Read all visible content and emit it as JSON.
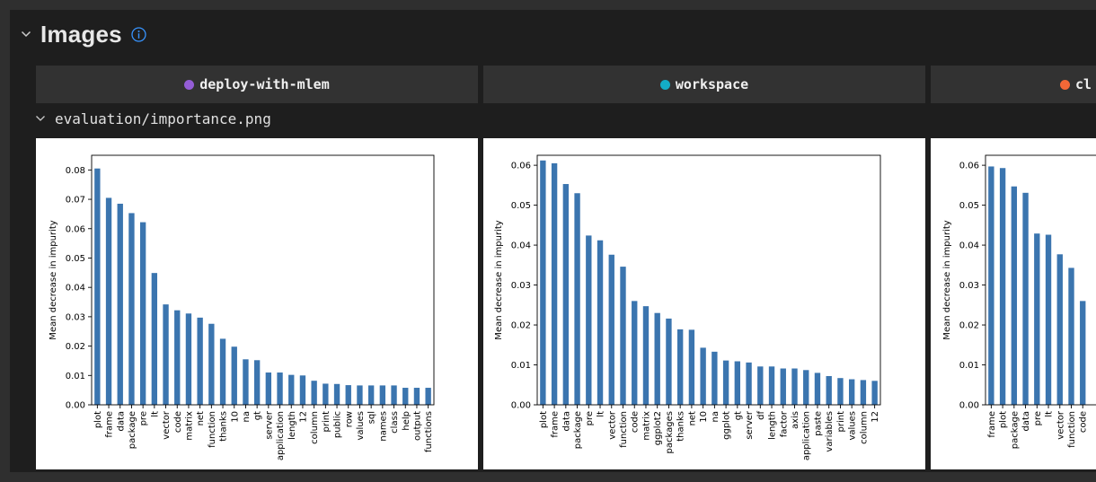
{
  "section": {
    "title": "Images",
    "chevron_icon": "chevron-down-icon",
    "info_icon": "info-icon"
  },
  "columns": [
    {
      "name": "deploy-with-mlem",
      "color": "#945dd6"
    },
    {
      "name": "workspace",
      "color": "#13adc7"
    },
    {
      "name": "cl",
      "color": "#f46837"
    }
  ],
  "plot_path": "evaluation/importance.png",
  "chart_data": [
    {
      "type": "bar",
      "ylabel": "Mean decrease in impurity",
      "xlabel": "",
      "ylim": [
        0,
        0.085
      ],
      "yticks": [
        0.0,
        0.01,
        0.02,
        0.03,
        0.04,
        0.05,
        0.06,
        0.07,
        0.08
      ],
      "ytick_labels": [
        "0.00",
        "0.01",
        "0.02",
        "0.03",
        "0.04",
        "0.05",
        "0.06",
        "0.07",
        "0.08"
      ],
      "bar_color": "#3b75af",
      "categories": [
        "plot",
        "frame",
        "data",
        "package",
        "pre",
        "lt",
        "vector",
        "code",
        "matrix",
        "net",
        "function",
        "thanks",
        "10",
        "na",
        "gt",
        "server",
        "application",
        "length",
        "12",
        "column",
        "print",
        "public",
        "row",
        "values",
        "sql",
        "names",
        "class",
        "help",
        "output",
        "functions"
      ],
      "values": [
        0.0805,
        0.0705,
        0.0685,
        0.0653,
        0.0622,
        0.0449,
        0.0342,
        0.0322,
        0.0311,
        0.0297,
        0.0276,
        0.0225,
        0.0198,
        0.0155,
        0.0152,
        0.011,
        0.011,
        0.0102,
        0.01,
        0.0082,
        0.0072,
        0.0071,
        0.0067,
        0.0066,
        0.0066,
        0.0066,
        0.0066,
        0.0058,
        0.0058,
        0.0058
      ]
    },
    {
      "type": "bar",
      "ylabel": "Mean decrease in impurity",
      "xlabel": "",
      "ylim": [
        0,
        0.0625
      ],
      "yticks": [
        0.0,
        0.01,
        0.02,
        0.03,
        0.04,
        0.05,
        0.06
      ],
      "ytick_labels": [
        "0.00",
        "0.01",
        "0.02",
        "0.03",
        "0.04",
        "0.05",
        "0.06"
      ],
      "bar_color": "#3b75af",
      "categories": [
        "plot",
        "frame",
        "data",
        "package",
        "pre",
        "lt",
        "vector",
        "function",
        "code",
        "matrix",
        "ggplot2",
        "packages",
        "thanks",
        "net",
        "10",
        "na",
        "ggplot",
        "gt",
        "server",
        "df",
        "length",
        "factor",
        "axis",
        "application",
        "paste",
        "variables",
        "print",
        "values",
        "column",
        "12"
      ],
      "values": [
        0.0612,
        0.0605,
        0.0553,
        0.053,
        0.0424,
        0.0412,
        0.0376,
        0.0346,
        0.026,
        0.0247,
        0.023,
        0.0216,
        0.0189,
        0.0188,
        0.0143,
        0.0133,
        0.0111,
        0.0109,
        0.0106,
        0.0096,
        0.0096,
        0.0091,
        0.0091,
        0.0087,
        0.008,
        0.0072,
        0.0067,
        0.0064,
        0.0062,
        0.006
      ]
    },
    {
      "type": "bar",
      "ylabel": "Mean decrease in impurity",
      "xlabel": "",
      "ylim": [
        0,
        0.0625
      ],
      "yticks": [
        0.0,
        0.01,
        0.02,
        0.03,
        0.04,
        0.05,
        0.06
      ],
      "ytick_labels": [
        "0.00",
        "0.01",
        "0.02",
        "0.03",
        "0.04",
        "0.05",
        "0.06"
      ],
      "bar_color": "#3b75af",
      "categories": [
        "frame",
        "plot",
        "package",
        "data",
        "pre",
        "lt",
        "vector",
        "function",
        "code"
      ],
      "values": [
        0.0597,
        0.0593,
        0.0547,
        0.0531,
        0.0429,
        0.0426,
        0.0377,
        0.0343,
        0.026
      ]
    }
  ]
}
